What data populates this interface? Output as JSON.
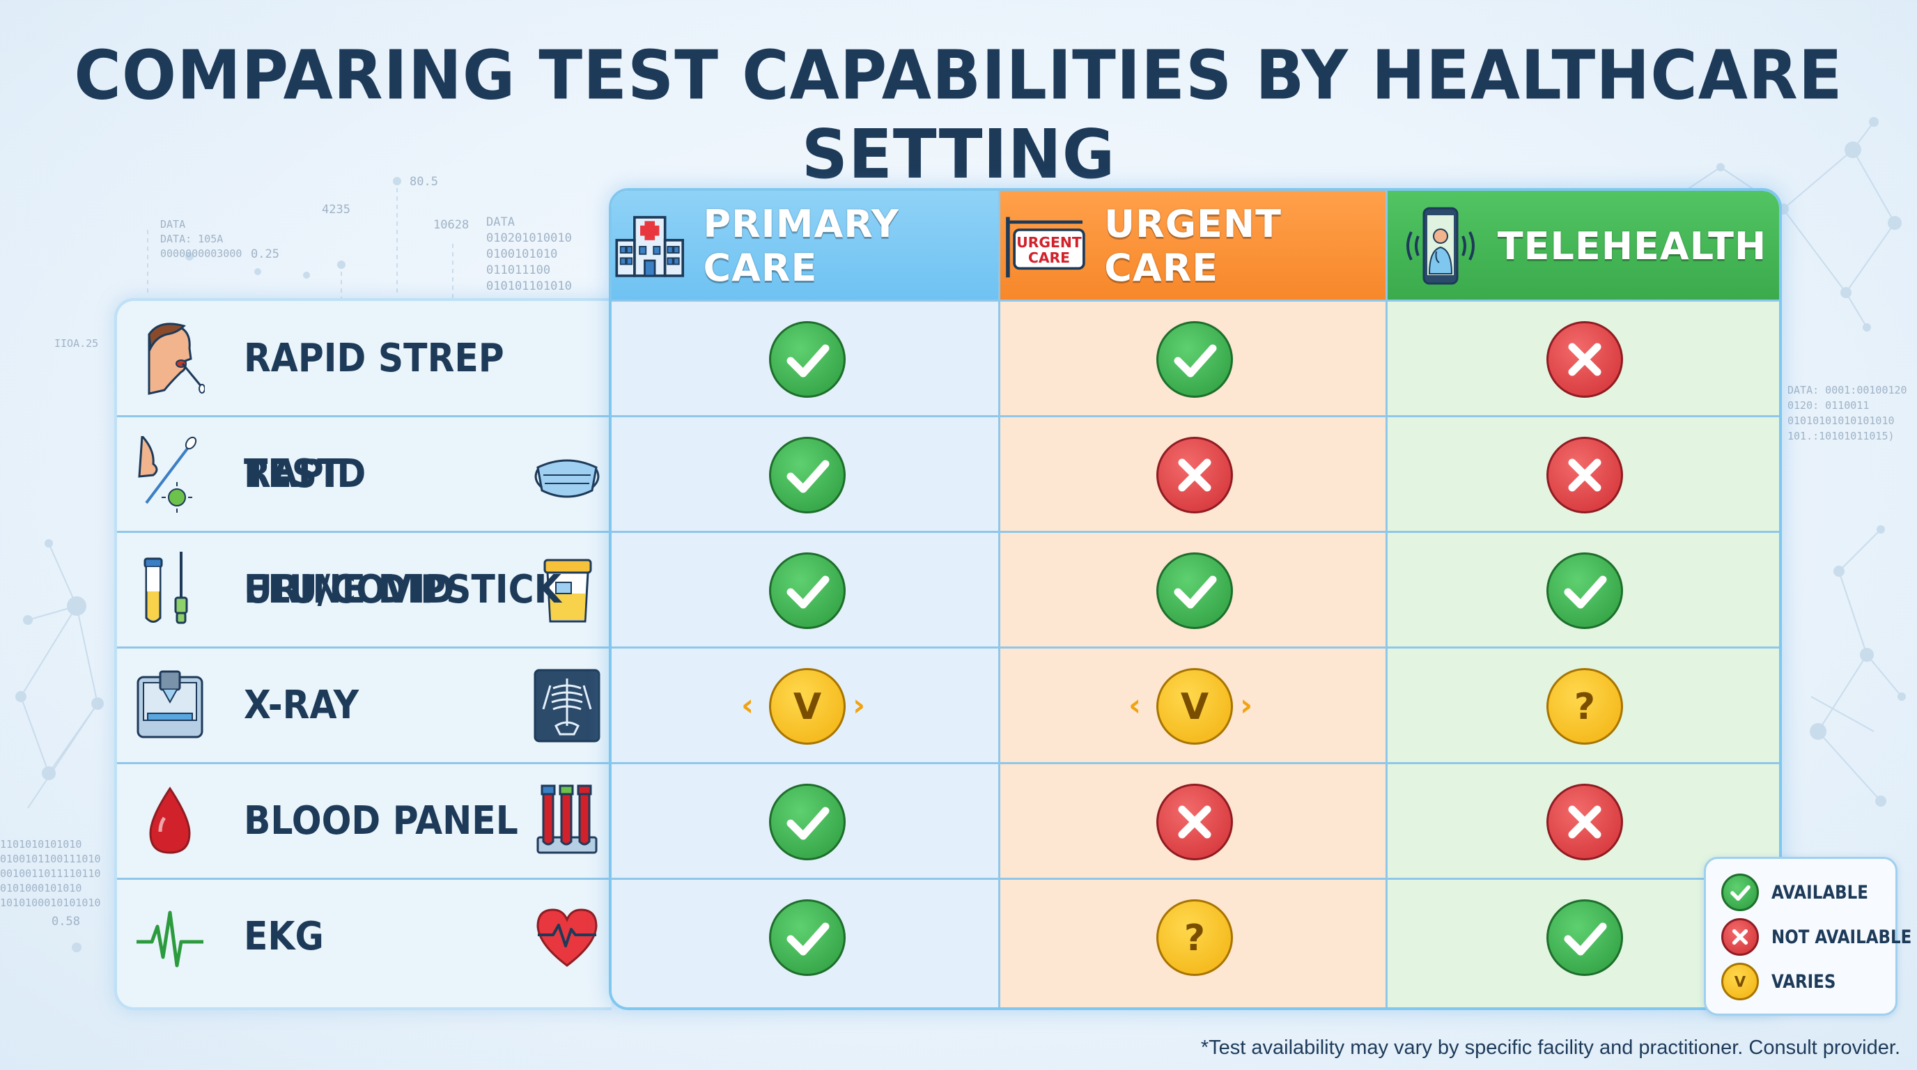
{
  "title": "COMPARING TEST CAPABILITIES BY HEALTHCARE SETTING",
  "columns": [
    {
      "label": "PRIMARY CARE",
      "icon": "hospital-icon",
      "color": "#6ec2f2"
    },
    {
      "label": "URGENT CARE",
      "icon": "urgent-care-sign-icon",
      "sign_text": "URGENT CARE",
      "color": "#f7872a"
    },
    {
      "label": "TELEHEALTH",
      "icon": "smartphone-doctor-icon",
      "color": "#3aaa4c"
    }
  ],
  "rows": [
    {
      "label": "RAPID STREP TEST",
      "icon": "throat-swab-icon",
      "status": [
        "available",
        "available",
        "not_available"
      ]
    },
    {
      "label": "RAPID FLU/COVID",
      "icon": "nasal-swab-icon",
      "icon_right": "face-mask-icon",
      "status": [
        "available",
        "not_available",
        "not_available"
      ]
    },
    {
      "label": "URINE DIPSTICK",
      "icon": "test-tubes-icon",
      "icon_right": "urine-cup-icon",
      "status": [
        "available",
        "available",
        "available"
      ]
    },
    {
      "label": "X-RAY",
      "icon": "xray-machine-icon",
      "icon_right": "skeleton-xray-icon",
      "status": [
        "varies",
        "varies",
        "unknown"
      ]
    },
    {
      "label": "BLOOD PANEL",
      "icon": "blood-drop-icon",
      "icon_right": "blood-vials-icon",
      "status": [
        "available",
        "not_available",
        "not_available"
      ]
    },
    {
      "label": "EKG",
      "icon": "ekg-line-icon",
      "icon_right": "heartbeat-icon",
      "status": [
        "available",
        "unknown",
        "available"
      ]
    }
  ],
  "symbols": {
    "varies": "V",
    "unknown": "?"
  },
  "legend": {
    "available": "AVAILABLE",
    "not_available": "NOT AVAILABLE",
    "varies": "VARIES"
  },
  "footnote": "*Test availability may vary by specific facility and practitioner. Consult provider.",
  "decor": {
    "left_top": [
      "DATA",
      "DATA: 105A",
      "0000000003000"
    ],
    "num_a": "0.25",
    "num_b": "4235",
    "num_c": "80.5",
    "data_block": [
      "DATA",
      "010201010010",
      "0100101010",
      "011011100",
      "010101101010"
    ],
    "num_d": "10628",
    "left_mid": "IIOA.25",
    "right_mid": [
      "DATA: 0001:00100120",
      "0120: 0110011",
      "01010101010101010",
      "101.:10101011015)"
    ],
    "left_bottom": [
      "1101010101010",
      "0100101100111010",
      "0010011011110110",
      "0101000101010",
      "1010100010101010"
    ],
    "num_e": "0.58"
  },
  "colors": {
    "available": "#2b9b3e",
    "not_available": "#d12f34",
    "varies": "#f2b10f",
    "title": "#1d3a59"
  }
}
